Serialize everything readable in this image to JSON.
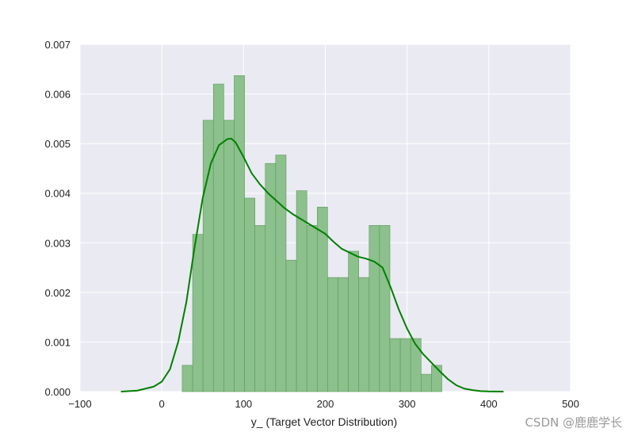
{
  "chart_data": {
    "type": "histogram",
    "title": "",
    "xlabel": "y_ (Target Vector Distribution)",
    "ylabel": "",
    "xlim": [
      -100,
      500
    ],
    "ylim": [
      0,
      0.007
    ],
    "x_ticks": [
      "−100",
      "0",
      "100",
      "200",
      "300",
      "400",
      "500"
    ],
    "x_tick_values": [
      -100,
      0,
      100,
      200,
      300,
      400,
      500
    ],
    "y_ticks": [
      "0.000",
      "0.001",
      "0.002",
      "0.003",
      "0.004",
      "0.005",
      "0.006",
      "0.007"
    ],
    "y_tick_values": [
      0,
      0.001,
      0.002,
      0.003,
      0.004,
      0.005,
      0.006,
      0.007
    ],
    "grid": true,
    "colors": {
      "background": "#eaeaf2",
      "bar": "#8cc08c",
      "bar_edge": "#5a9a5a",
      "kde": "#008000",
      "grid": "#ffffff"
    },
    "bins": [
      {
        "x0": 25,
        "x1": 37.7,
        "density": 0.00053
      },
      {
        "x0": 37.7,
        "x1": 50.4,
        "density": 0.00317
      },
      {
        "x0": 50.4,
        "x1": 63.1,
        "density": 0.00547
      },
      {
        "x0": 63.1,
        "x1": 75.8,
        "density": 0.0062
      },
      {
        "x0": 75.8,
        "x1": 88.5,
        "density": 0.00547
      },
      {
        "x0": 88.5,
        "x1": 101.2,
        "density": 0.00637
      },
      {
        "x0": 101.2,
        "x1": 113.9,
        "density": 0.0039
      },
      {
        "x0": 113.9,
        "x1": 126.6,
        "density": 0.00335
      },
      {
        "x0": 126.6,
        "x1": 139.3,
        "density": 0.0046
      },
      {
        "x0": 139.3,
        "x1": 152,
        "density": 0.00477
      },
      {
        "x0": 152,
        "x1": 164.7,
        "density": 0.00265
      },
      {
        "x0": 164.7,
        "x1": 177.4,
        "density": 0.00405
      },
      {
        "x0": 177.4,
        "x1": 190.1,
        "density": 0.00335
      },
      {
        "x0": 190.1,
        "x1": 202.8,
        "density": 0.00372
      },
      {
        "x0": 202.8,
        "x1": 215.5,
        "density": 0.0023
      },
      {
        "x0": 215.5,
        "x1": 228.2,
        "density": 0.0023
      },
      {
        "x0": 228.2,
        "x1": 240.9,
        "density": 0.00283
      },
      {
        "x0": 240.9,
        "x1": 253.6,
        "density": 0.0023
      },
      {
        "x0": 253.6,
        "x1": 266.3,
        "density": 0.00335
      },
      {
        "x0": 266.3,
        "x1": 279,
        "density": 0.00335
      },
      {
        "x0": 279,
        "x1": 291.7,
        "density": 0.00107
      },
      {
        "x0": 291.7,
        "x1": 304.4,
        "density": 0.00107
      },
      {
        "x0": 304.4,
        "x1": 317.1,
        "density": 0.00107
      },
      {
        "x0": 317.1,
        "x1": 329.8,
        "density": 0.00035
      },
      {
        "x0": 329.8,
        "x1": 342.5,
        "density": 0.00053
      }
    ],
    "kde": {
      "x": [
        -50,
        -30,
        -10,
        0,
        10,
        20,
        30,
        40,
        50,
        60,
        70,
        80,
        85,
        90,
        100,
        110,
        120,
        130,
        140,
        150,
        160,
        170,
        180,
        190,
        200,
        210,
        220,
        230,
        240,
        250,
        260,
        270,
        280,
        290,
        300,
        310,
        320,
        330,
        340,
        350,
        360,
        370,
        380,
        390,
        400,
        418
      ],
      "y": [
        0.0,
        2e-05,
        0.0001,
        0.0002,
        0.00045,
        0.001,
        0.0018,
        0.0029,
        0.0039,
        0.0046,
        0.00497,
        0.00509,
        0.0051,
        0.00503,
        0.00473,
        0.0044,
        0.00418,
        0.004,
        0.00385,
        0.0037,
        0.00358,
        0.00348,
        0.00338,
        0.00328,
        0.00318,
        0.00302,
        0.00288,
        0.0028,
        0.00272,
        0.00268,
        0.00262,
        0.0025,
        0.0021,
        0.00165,
        0.00127,
        0.00096,
        0.00075,
        0.00058,
        0.00041,
        0.00025,
        0.00013,
        6e-05,
        3e-05,
        1e-05,
        3e-06,
        0.0
      ]
    }
  },
  "watermark": "CSDN @鹿鹿学长"
}
